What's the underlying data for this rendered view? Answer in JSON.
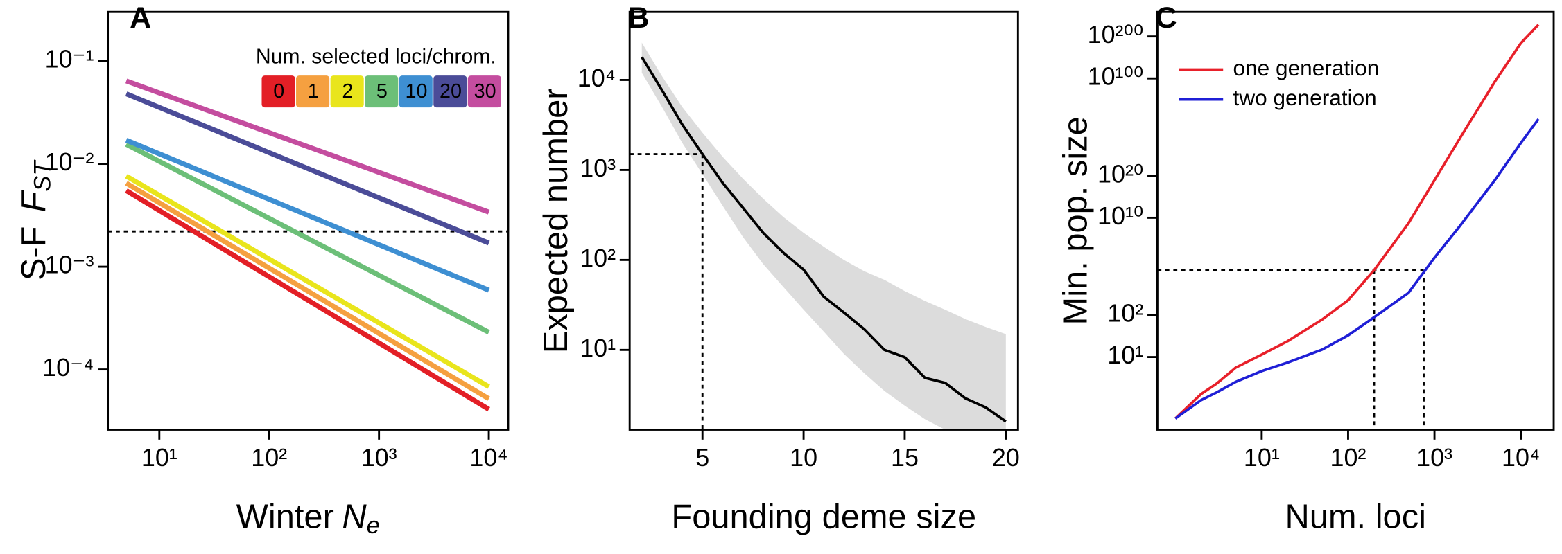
{
  "chart_data": [
    {
      "type": "line",
      "panel": "A",
      "xlabel": "Winter",
      "xlabel_symbol": "N",
      "xlabel_sub": "e",
      "ylabel": "S-F",
      "ylabel_symbol": "F",
      "ylabel_sub": "ST",
      "xscale": "log",
      "yscale": "log",
      "xlim": [
        3.4,
        15000
      ],
      "ylim": [
        2.6e-05,
        0.3
      ],
      "xticks": [
        {
          "value": 10,
          "label": "10¹"
        },
        {
          "value": 100,
          "label": "10²"
        },
        {
          "value": 1000,
          "label": "10³"
        },
        {
          "value": 10000,
          "label": "10⁴"
        }
      ],
      "yticks": [
        {
          "value": 0.1,
          "label": "10⁻¹"
        },
        {
          "value": 0.01,
          "label": "10⁻²"
        },
        {
          "value": 0.001,
          "label": "10⁻³"
        },
        {
          "value": 0.0001,
          "label": "10⁻⁴"
        }
      ],
      "legend_title": "Num. selected loci/chrom.",
      "legend": "top-right",
      "reference": {
        "y": 0.0022
      },
      "x": [
        5,
        10000
      ],
      "series": [
        {
          "name": "0",
          "color": "#e31f26",
          "values": [
            0.0055,
            4.1e-05
          ]
        },
        {
          "name": "1",
          "color": "#f5a040",
          "values": [
            0.0065,
            5.2e-05
          ]
        },
        {
          "name": "2",
          "color": "#e9e51c",
          "values": [
            0.0076,
            6.8e-05
          ]
        },
        {
          "name": "5",
          "color": "#6cbf78",
          "values": [
            0.0155,
            0.00023
          ]
        },
        {
          "name": "10",
          "color": "#3e8fd2",
          "values": [
            0.017,
            0.00059
          ]
        },
        {
          "name": "20",
          "color": "#4b4c98",
          "values": [
            0.048,
            0.0017
          ]
        },
        {
          "name": "30",
          "color": "#c44d9f",
          "values": [
            0.064,
            0.0034
          ]
        }
      ]
    },
    {
      "type": "line",
      "panel": "B",
      "xlabel": "Founding deme size",
      "ylabel": "Expected number",
      "xscale": "linear",
      "yscale": "log",
      "xlim": [
        1.4,
        20.6
      ],
      "ylim": [
        1.3,
        57000
      ],
      "xticks": [
        5,
        10,
        15,
        20
      ],
      "yticks": [
        {
          "value": 10000,
          "label": "10⁴"
        },
        {
          "value": 1000,
          "label": "10³"
        },
        {
          "value": 100,
          "label": "10²"
        },
        {
          "value": 10,
          "label": "10¹"
        }
      ],
      "reference": {
        "y": 1500,
        "x": [
          5
        ]
      },
      "x": [
        2,
        3,
        4,
        5,
        6,
        7,
        8,
        9,
        10,
        11,
        12,
        13,
        14,
        15,
        16,
        17,
        18,
        19,
        20
      ],
      "interval": {
        "color": "#dcdcdc",
        "lower": [
          12000,
          5000,
          2000,
          900,
          400,
          180,
          90,
          50,
          28,
          16,
          9,
          5.5,
          3.5,
          2.4,
          1.7,
          1.3,
          1,
          0.8,
          0.6
        ],
        "upper": [
          26000,
          11000,
          5000,
          2600,
          1400,
          800,
          480,
          300,
          200,
          140,
          100,
          75,
          60,
          45,
          35,
          28,
          22,
          18,
          15
        ]
      },
      "series": [
        {
          "color": "#000000",
          "values": [
            18000,
            7700,
            3200,
            1500,
            720,
            380,
            200,
            120,
            78,
            39,
            26,
            17,
            10,
            8.3,
            4.9,
            4.3,
            2.9,
            2.3,
            1.6
          ]
        }
      ]
    },
    {
      "type": "line",
      "panel": "C",
      "xlabel": "Num. loci",
      "ylabel": "Min. pop. size",
      "xscale": "log",
      "yscale": "double-log",
      "xlim": [
        0.62,
        24000
      ],
      "ylim": [
        2,
        1e+300
      ],
      "xticks": [
        {
          "value": 10,
          "label": "10¹"
        },
        {
          "value": 100,
          "label": "10²"
        },
        {
          "value": 1000,
          "label": "10³"
        },
        {
          "value": 10000,
          "label": "10⁴"
        }
      ],
      "yticks": [
        {
          "value": 1e+200,
          "label": "10²⁰⁰"
        },
        {
          "value": 1e+100,
          "label": "10¹⁰⁰"
        },
        {
          "value": 1e+20,
          "label": "10²⁰"
        },
        {
          "value": 10000000000.0,
          "label": "10¹⁰"
        },
        {
          "value": 100,
          "label": "10²"
        },
        {
          "value": 10,
          "label": "10¹"
        }
      ],
      "legend": "top-left",
      "reference": {
        "y": 16000,
        "x": [
          200,
          750
        ]
      },
      "x": [
        1,
        2,
        3,
        5,
        10,
        20,
        50,
        100,
        200,
        500,
        1000,
        2000,
        5000,
        10000,
        16000
      ],
      "series": [
        {
          "name": "one generation",
          "color": "#e8202a",
          "values": [
            2.3,
            3.5,
            4.4,
            6.9,
            11,
            20,
            72,
            360,
            16000,
            1300000000.0,
            4e+18,
            6e+37,
            6e+94,
            1e+179,
            1e+243
          ]
        },
        {
          "name": "two generation",
          "color": "#1f1fd6",
          "values": [
            2.3,
            3.1,
            3.6,
            4.6,
            6.2,
            8.2,
            13.5,
            27,
            85,
            770,
            150000,
            700000000.0,
            4e+18,
            2.5e+34,
            1e+51
          ]
        }
      ]
    }
  ]
}
